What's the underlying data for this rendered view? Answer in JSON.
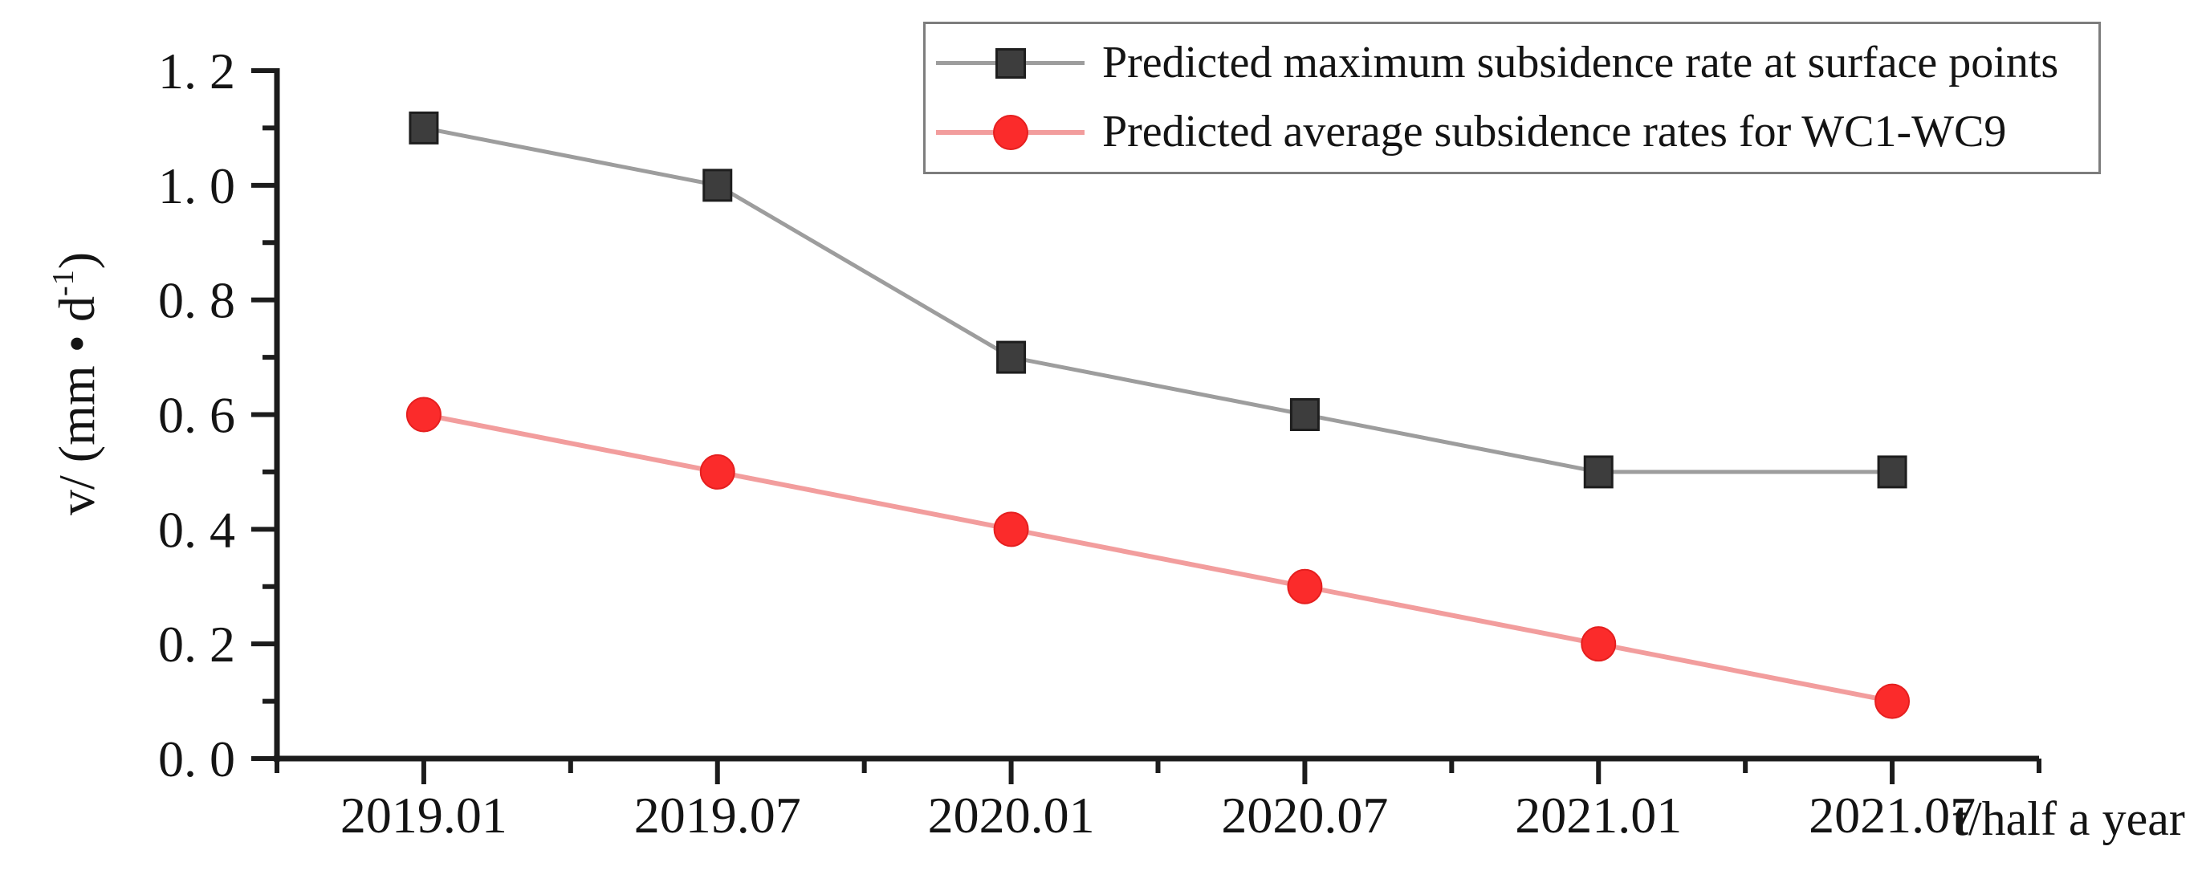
{
  "figure": {
    "background": "#ffffff",
    "axis_color": "#1c1c1c",
    "text_color": "#141414"
  },
  "chart_data": {
    "type": "line",
    "categories": [
      "2019.01",
      "2019.07",
      "2020.01",
      "2020.07",
      "2021.01",
      "2021.07"
    ],
    "series": [
      {
        "name": "Predicted maximum subsidence rate at surface points",
        "values": [
          1.1,
          1.0,
          0.7,
          0.6,
          0.5,
          0.5
        ],
        "line_color": "#9d9d9d",
        "line_width": 5,
        "marker": "square",
        "marker_fill": "#3d3d3d",
        "marker_stroke": "#1e1e1e"
      },
      {
        "name": "Predicted average subsidence rates for WC1-WC9",
        "values": [
          0.6,
          0.5,
          0.4,
          0.3,
          0.2,
          0.1
        ],
        "line_color": "#f29d9d",
        "line_width": 6,
        "marker": "circle",
        "marker_fill": "#fb2b2b",
        "marker_stroke": "#e51f1f"
      }
    ],
    "xlabel": {
      "bold": "t",
      "rest": "/half a year"
    },
    "ylabel": {
      "pre": "v/ (mm • d",
      "sup": "-1",
      "post": ")"
    },
    "ylim": [
      0,
      1.2
    ],
    "y_ticks_major": [
      0.0,
      0.2,
      0.4,
      0.6,
      0.8,
      1.0,
      1.2
    ],
    "y_tick_labels": [
      "0. 0",
      "0. 2",
      "0. 4",
      "0. 6",
      "0. 8",
      "1. 0",
      "1. 2"
    ],
    "y_minor_ticks": [
      0.1,
      0.3,
      0.5,
      0.7,
      0.9,
      1.1
    ],
    "grid": false,
    "legend_position": "top-right"
  }
}
